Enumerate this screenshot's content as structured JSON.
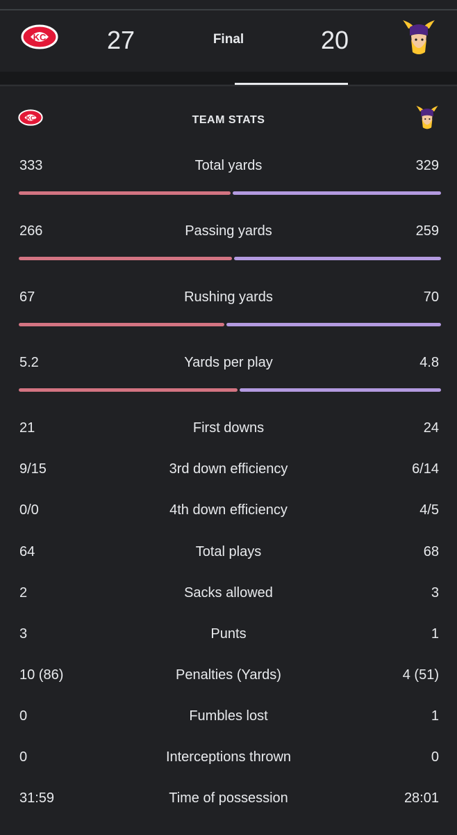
{
  "game": {
    "away_team": "Kansas City Chiefs",
    "home_team": "Minnesota Vikings",
    "away_score": "27",
    "home_score": "20",
    "status": "Final"
  },
  "colors": {
    "away_bar": "#d37482",
    "home_bar": "#b39ae0",
    "background": "#202124"
  },
  "team_stats": {
    "title": "TEAM STATS",
    "bar_rows": [
      {
        "label": "Total yards",
        "away": "333",
        "home": "329",
        "away_share": 0.503
      },
      {
        "label": "Passing yards",
        "away": "266",
        "home": "259",
        "away_share": 0.507
      },
      {
        "label": "Rushing yards",
        "away": "67",
        "home": "70",
        "away_share": 0.489
      },
      {
        "label": "Yards per play",
        "away": "5.2",
        "home": "4.8",
        "away_share": 0.52
      }
    ],
    "rows": [
      {
        "label": "First downs",
        "away": "21",
        "home": "24"
      },
      {
        "label": "3rd down efficiency",
        "away": "9/15",
        "home": "6/14"
      },
      {
        "label": "4th down efficiency",
        "away": "0/0",
        "home": "4/5"
      },
      {
        "label": "Total plays",
        "away": "64",
        "home": "68"
      },
      {
        "label": "Sacks allowed",
        "away": "2",
        "home": "3"
      },
      {
        "label": "Punts",
        "away": "3",
        "home": "1"
      },
      {
        "label": "Penalties (Yards)",
        "away": "10 (86)",
        "home": "4 (51)"
      },
      {
        "label": "Fumbles lost",
        "away": "0",
        "home": "1"
      },
      {
        "label": "Interceptions thrown",
        "away": "0",
        "home": "0"
      },
      {
        "label": "Time of possession",
        "away": "31:59",
        "home": "28:01"
      }
    ]
  }
}
